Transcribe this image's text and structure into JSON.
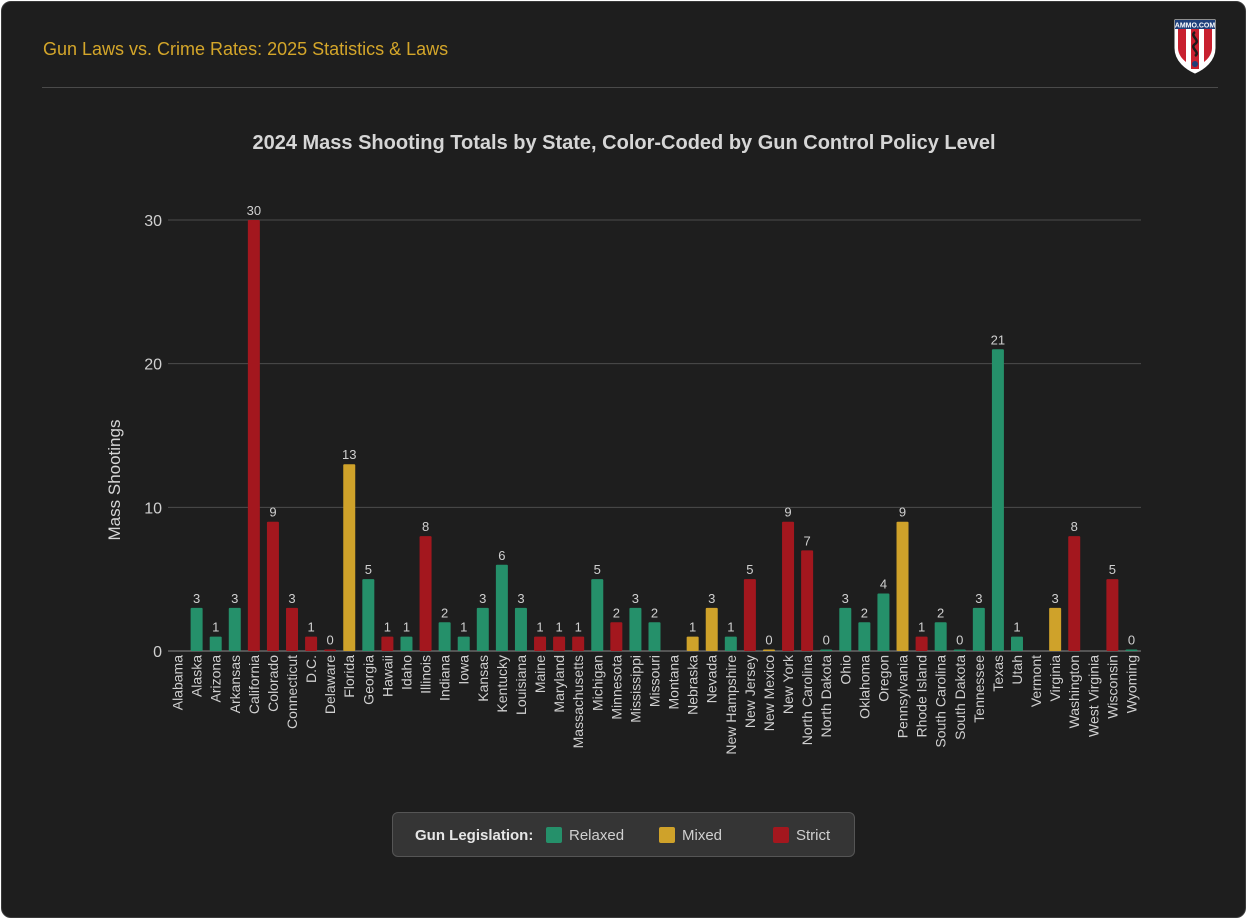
{
  "header": {
    "title": "Gun Laws vs. Crime Rates: 2025 Statistics & Laws",
    "logo_text": "AMMO.COM"
  },
  "colors": {
    "background": "#1e1e1e",
    "accent": "#d4a62a",
    "relaxed": "#25906a",
    "mixed": "#cfa22a",
    "strict": "#a3171e"
  },
  "legend": {
    "title": "Gun Legislation:",
    "items": [
      {
        "label": "Relaxed",
        "color": "#25906a"
      },
      {
        "label": "Mixed",
        "color": "#cfa22a"
      },
      {
        "label": "Strict",
        "color": "#a3171e"
      }
    ]
  },
  "chart_data": {
    "type": "bar",
    "title": "2024 Mass Shooting Totals by State, Color-Coded by Gun Control Policy Level",
    "xlabel": "",
    "ylabel": "Mass Shootings",
    "ylim": [
      0,
      30
    ],
    "yticks": [
      0,
      10,
      20,
      30
    ],
    "grid": true,
    "legend_position": "bottom",
    "categories": [
      "Alabama",
      "Alaska",
      "Arizona",
      "Arkansas",
      "California",
      "Colorado",
      "Connecticut",
      "D.C.",
      "Delaware",
      "Florida",
      "Georgia",
      "Hawaii",
      "Idaho",
      "Illinois",
      "Indiana",
      "Iowa",
      "Kansas",
      "Kentucky",
      "Louisiana",
      "Maine",
      "Maryland",
      "Massachusetts",
      "Michigan",
      "Minnesota",
      "Mississippi",
      "Missouri",
      "Montana",
      "Nebraska",
      "Nevada",
      "New Hampshire",
      "New Jersey",
      "New Mexico",
      "New York",
      "North Carolina",
      "North Dakota",
      "Ohio",
      "Oklahoma",
      "Oregon",
      "Pennsylvania",
      "Rhode Island",
      "South Carolina",
      "South Dakota",
      "Tennessee",
      "Texas",
      "Utah",
      "Vermont",
      "Virginia",
      "Washington",
      "West Virginia",
      "Wisconsin",
      "Wyoming"
    ],
    "values": [
      null,
      3,
      1,
      3,
      30,
      9,
      3,
      1,
      0,
      13,
      5,
      1,
      1,
      8,
      2,
      1,
      3,
      6,
      3,
      1,
      1,
      1,
      5,
      2,
      3,
      2,
      null,
      1,
      3,
      1,
      5,
      0,
      9,
      7,
      0,
      3,
      2,
      4,
      9,
      1,
      2,
      0,
      3,
      21,
      1,
      null,
      3,
      8,
      null,
      5,
      0
    ],
    "policy": [
      "Relaxed",
      "Relaxed",
      "Relaxed",
      "Relaxed",
      "Strict",
      "Strict",
      "Strict",
      "Strict",
      "Strict",
      "Mixed",
      "Relaxed",
      "Strict",
      "Relaxed",
      "Strict",
      "Relaxed",
      "Relaxed",
      "Relaxed",
      "Relaxed",
      "Relaxed",
      "Strict",
      "Strict",
      "Strict",
      "Relaxed",
      "Strict",
      "Relaxed",
      "Relaxed",
      "Relaxed",
      "Mixed",
      "Mixed",
      "Relaxed",
      "Strict",
      "Mixed",
      "Strict",
      "Strict",
      "Relaxed",
      "Relaxed",
      "Relaxed",
      "Relaxed",
      "Mixed",
      "Strict",
      "Relaxed",
      "Relaxed",
      "Relaxed",
      "Relaxed",
      "Relaxed",
      "Strict",
      "Mixed",
      "Strict",
      "Relaxed",
      "Strict",
      "Relaxed"
    ]
  }
}
